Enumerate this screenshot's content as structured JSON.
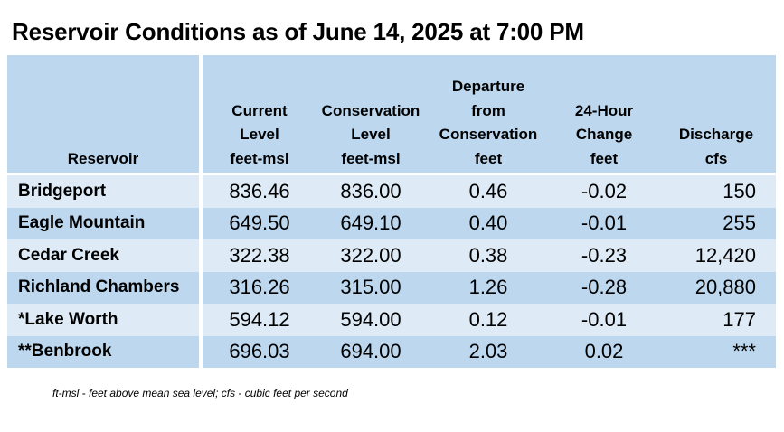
{
  "title": "Reservoir Conditions as of June 14, 2025 at 7:00 PM",
  "table": {
    "headers": [
      [
        "Reservoir"
      ],
      [
        "Current",
        "Level",
        "feet-msl"
      ],
      [
        "Conservation",
        "Level",
        "feet-msl"
      ],
      [
        "Departure",
        "from",
        "Conservation",
        "feet"
      ],
      [
        "24-Hour",
        "Change",
        "feet"
      ],
      [
        "Discharge",
        "cfs"
      ]
    ],
    "rows": [
      {
        "reservoir": "Bridgeport",
        "current_level": "836.46",
        "conservation_level": "836.00",
        "departure": "0.46",
        "change_24h": "-0.02",
        "discharge": "150"
      },
      {
        "reservoir": "Eagle Mountain",
        "current_level": "649.50",
        "conservation_level": "649.10",
        "departure": "0.40",
        "change_24h": "-0.01",
        "discharge": "255"
      },
      {
        "reservoir": "Cedar Creek",
        "current_level": "322.38",
        "conservation_level": "322.00",
        "departure": "0.38",
        "change_24h": "-0.23",
        "discharge": "12,420"
      },
      {
        "reservoir": "Richland Chambers",
        "current_level": "316.26",
        "conservation_level": "315.00",
        "departure": "1.26",
        "change_24h": "-0.28",
        "discharge": "20,880"
      },
      {
        "reservoir": "*Lake Worth",
        "current_level": "594.12",
        "conservation_level": "594.00",
        "departure": "0.12",
        "change_24h": "-0.01",
        "discharge": "177"
      },
      {
        "reservoir": "**Benbrook",
        "current_level": "696.03",
        "conservation_level": "694.00",
        "departure": "2.03",
        "change_24h": "0.02",
        "discharge": "***"
      }
    ],
    "colors": {
      "header_bg": "#bcd7ee",
      "row_light": "#deebf7",
      "row_dark": "#bcd7ee"
    }
  },
  "footnote": "ft-msl - feet above mean sea level; cfs - cubic feet per second"
}
